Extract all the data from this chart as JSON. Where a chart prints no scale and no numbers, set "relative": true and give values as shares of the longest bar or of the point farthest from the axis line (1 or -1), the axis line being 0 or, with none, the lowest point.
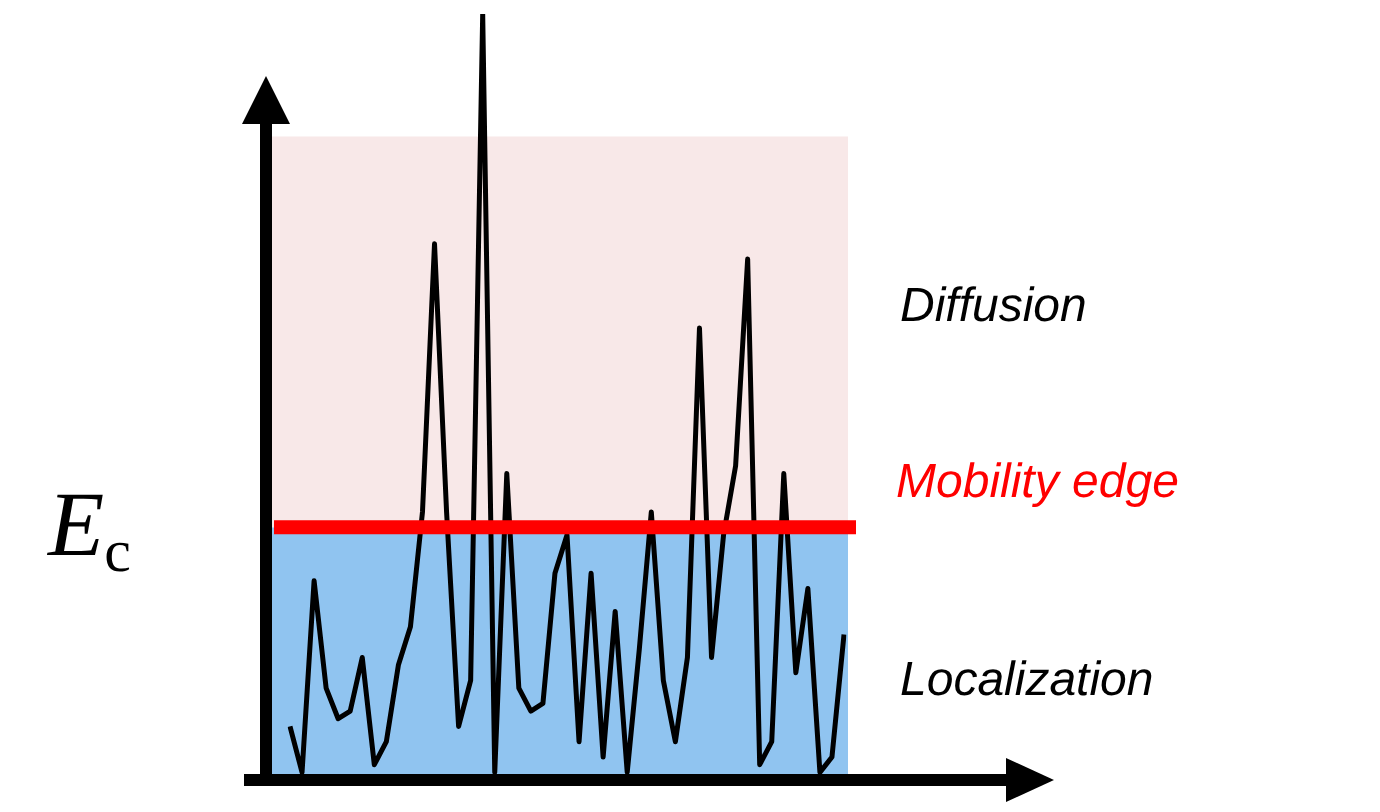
{
  "chart_data": {
    "type": "line",
    "relative": true,
    "legend": false,
    "marker": "none",
    "line_style": "solid",
    "categories": [
      null,
      null,
      null,
      null,
      null,
      null,
      null,
      null,
      null,
      null,
      null,
      null,
      null,
      null,
      null,
      null,
      null,
      null,
      null,
      null,
      null,
      null,
      null,
      null,
      null,
      null,
      null,
      null,
      null,
      null,
      null,
      null,
      null,
      null,
      null,
      null,
      null,
      null,
      null,
      null,
      null,
      null,
      null,
      null,
      null,
      null,
      null
    ],
    "series": [
      {
        "color": "#000000",
        "values": [
          0.07,
          0.01,
          0.26,
          0.12,
          0.08,
          0.09,
          0.16,
          0.02,
          0.05,
          0.15,
          0.2,
          0.35,
          0.7,
          0.35,
          0.07,
          0.13,
          1.0,
          0.01,
          0.4,
          0.12,
          0.09,
          0.1,
          0.27,
          0.32,
          0.05,
          0.27,
          0.03,
          0.22,
          0.01,
          0.17,
          0.35,
          0.13,
          0.05,
          0.16,
          0.59,
          0.16,
          0.32,
          0.41,
          0.68,
          0.02,
          0.05,
          0.4,
          0.14,
          0.25,
          0.01,
          0.03,
          0.19
        ]
      }
    ],
    "ref_lines": [
      {
        "axis": "y",
        "value": 0.33,
        "label": "Mobility edge",
        "color": "#ff0000"
      }
    ],
    "bands": [
      {
        "axis": "y",
        "from": 0,
        "to": 0.33,
        "label": "Localization",
        "color": "#90c4f0"
      },
      {
        "axis": "y",
        "from": 0.33,
        "to": 0.84,
        "label": "Diffusion",
        "color": "#f8e8e8"
      }
    ],
    "annotations": [
      "E$_{c}$"
    ]
  }
}
